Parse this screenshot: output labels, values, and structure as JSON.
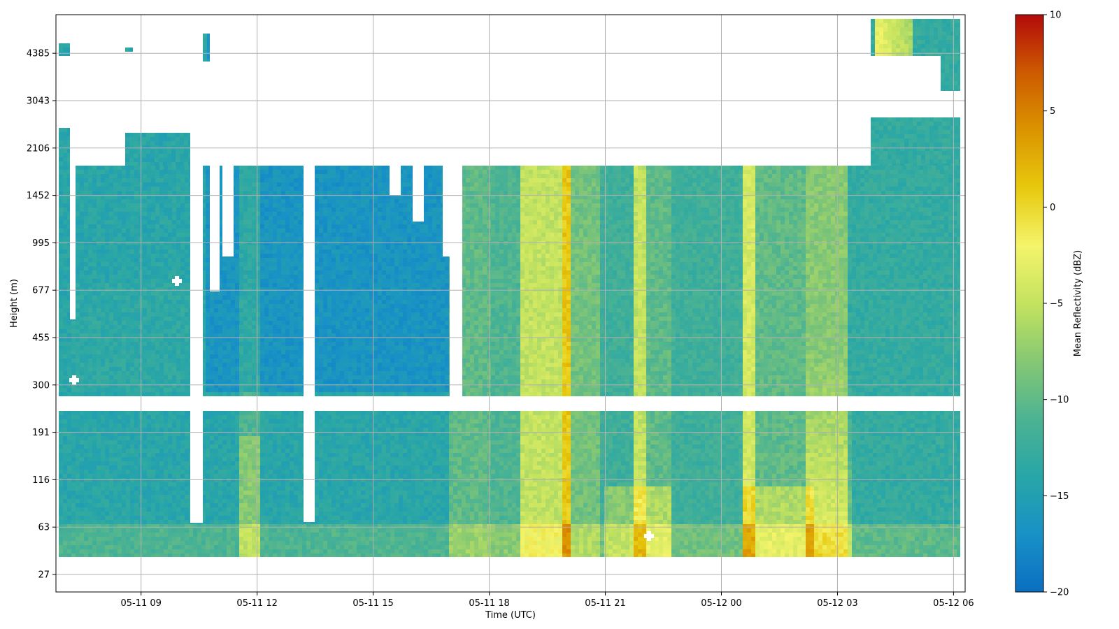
{
  "chart_data": {
    "type": "heatmap",
    "title": "",
    "xlabel": "Time (UTC)",
    "ylabel": "Height (m)",
    "x_tick_labels": [
      "05-11 09",
      "05-11 12",
      "05-11 15",
      "05-11 18",
      "05-11 21",
      "05-12 00",
      "05-12 03",
      "05-12 06"
    ],
    "x_ticks_hours": [
      0,
      3,
      6,
      9,
      12,
      15,
      18,
      21
    ],
    "x_range_hours": [
      -2.2,
      21.3
    ],
    "y_tick_labels": [
      "27",
      "63",
      "116",
      "191",
      "300",
      "455",
      "677",
      "995",
      "1452",
      "2106",
      "3043",
      "4385"
    ],
    "grid": true,
    "colorbar": {
      "label": "Mean Reflectivity (dBZ)",
      "range": [
        -20,
        10
      ],
      "tick_labels": [
        "−20",
        "−15",
        "−10",
        "−5",
        "0",
        "5",
        "10"
      ],
      "colormap": [
        "#0a6fc2",
        "#1891c6",
        "#28a6a7",
        "#4cb392",
        "#86c873",
        "#c4e35f",
        "#f4f46a",
        "#e7c90e",
        "#db9400",
        "#cd5a00",
        "#b30a0a"
      ]
    },
    "description_fields": {
      "base_level_dbz": -13,
      "notes": ""
    }
  }
}
